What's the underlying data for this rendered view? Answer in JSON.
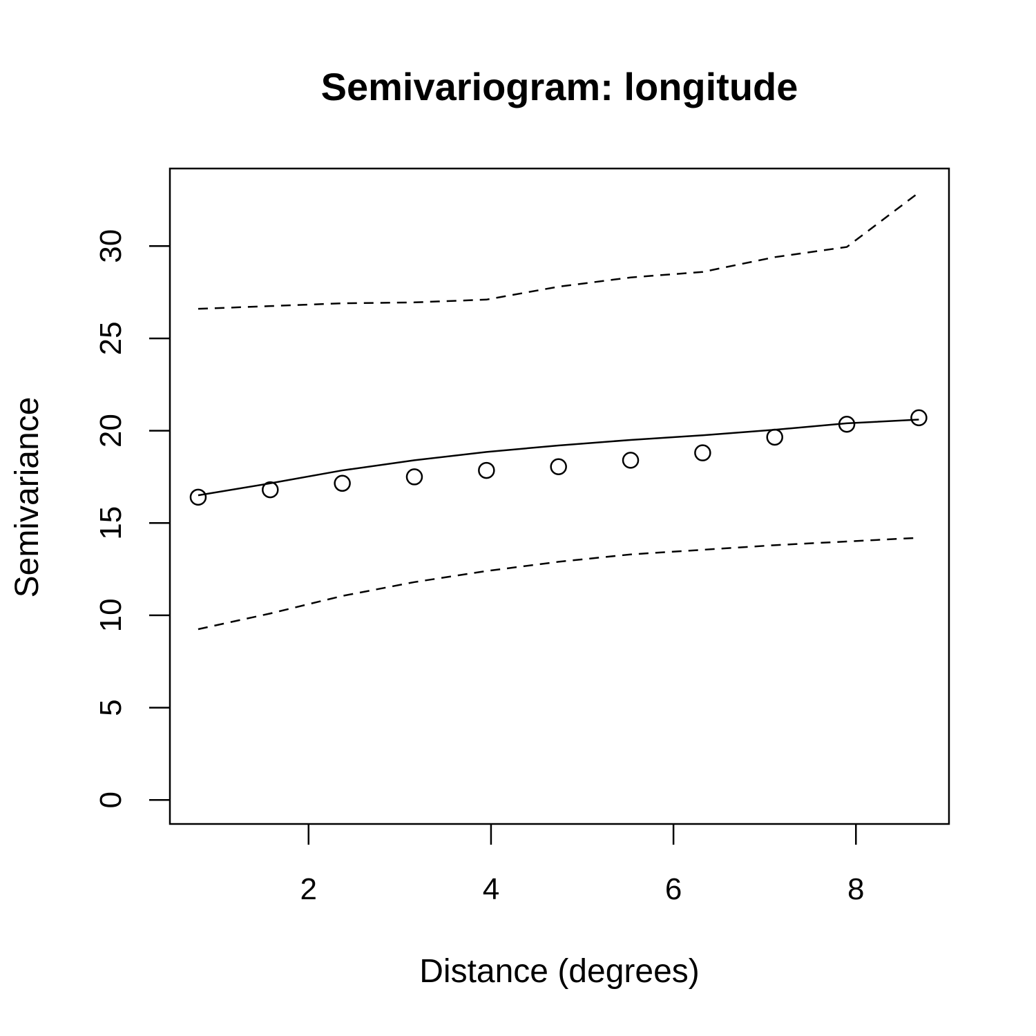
{
  "chart_data": {
    "type": "scatter",
    "title": "Semivariogram: longitude",
    "xlabel": "Distance (degrees)",
    "ylabel": "Semivariance",
    "xlim": [
      0.48,
      9.02
    ],
    "ylim": [
      -1.3,
      34.2
    ],
    "x_ticks": [
      2,
      4,
      6,
      8
    ],
    "y_ticks": [
      0,
      5,
      10,
      15,
      20,
      25,
      30
    ],
    "grid": false,
    "line_color": "#000000",
    "x": [
      0.79,
      1.58,
      2.37,
      3.16,
      3.95,
      4.74,
      5.53,
      6.32,
      7.11,
      7.9,
      8.69
    ],
    "series": [
      {
        "values": [
          16.4,
          16.8,
          17.15,
          17.5,
          17.85,
          18.05,
          18.4,
          18.8,
          19.65,
          20.35,
          20.7
        ]
      },
      {
        "values": [
          16.5,
          17.15,
          17.85,
          18.4,
          18.85,
          19.2,
          19.5,
          19.75,
          20.05,
          20.4,
          20.6
        ]
      },
      {
        "values": [
          26.6,
          26.75,
          26.9,
          26.95,
          27.1,
          27.8,
          28.3,
          28.6,
          29.4,
          29.95,
          32.9
        ]
      },
      {
        "values": [
          9.25,
          10.1,
          11.05,
          11.8,
          12.4,
          12.9,
          13.3,
          13.55,
          13.8,
          14.0,
          14.2
        ]
      }
    ]
  }
}
